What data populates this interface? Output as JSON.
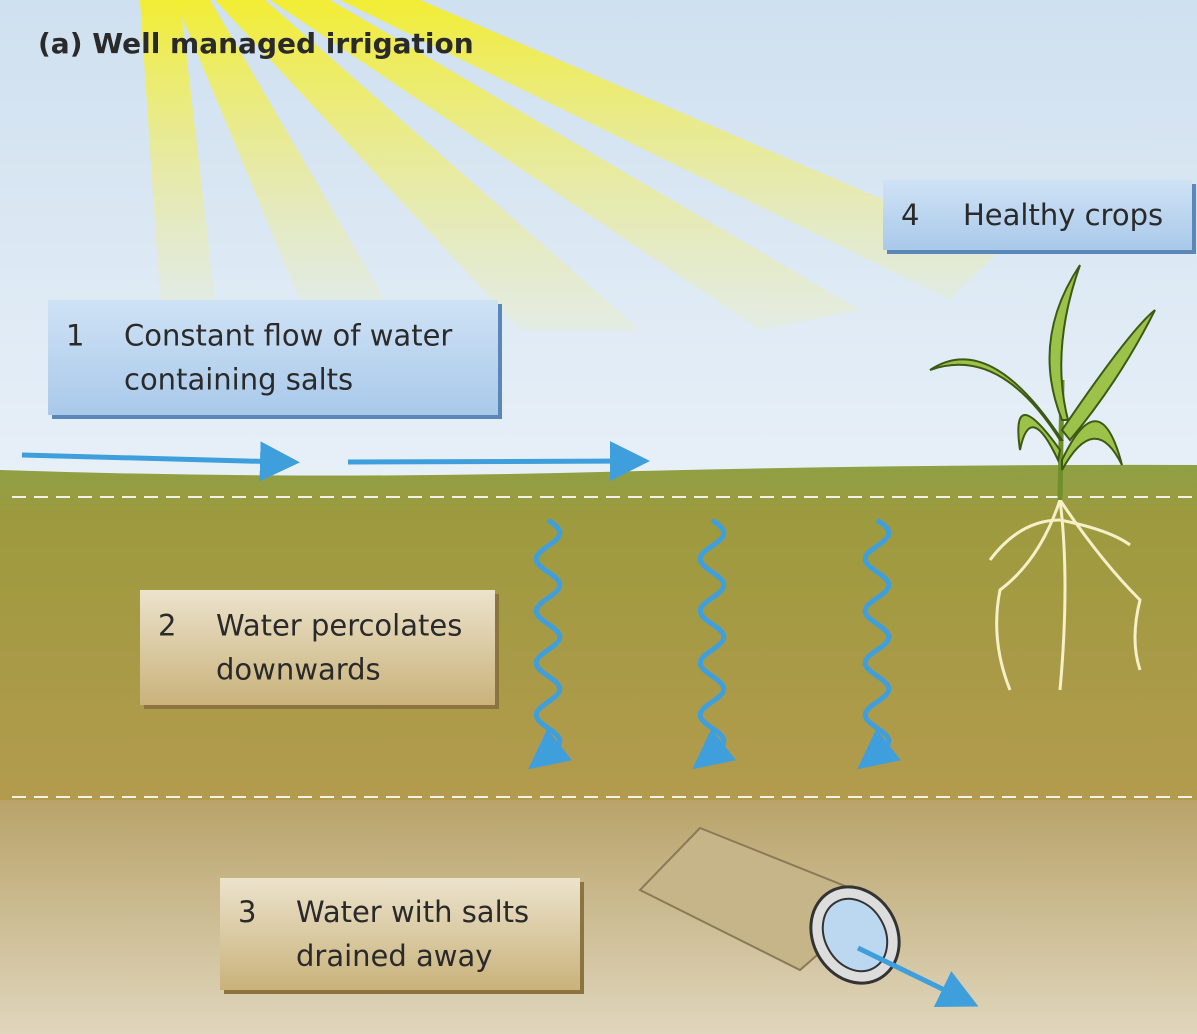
{
  "title": "(a) Well managed irrigation",
  "labels": [
    {
      "number": "1",
      "lines": [
        "Constant flow of water",
        "containing salts"
      ]
    },
    {
      "number": "2",
      "lines": [
        "Water percolates",
        "downwards"
      ]
    },
    {
      "number": "3",
      "lines": [
        "Water with salts",
        "drained away"
      ]
    },
    {
      "number": "4",
      "lines": [
        "Healthy crops"
      ]
    }
  ]
}
